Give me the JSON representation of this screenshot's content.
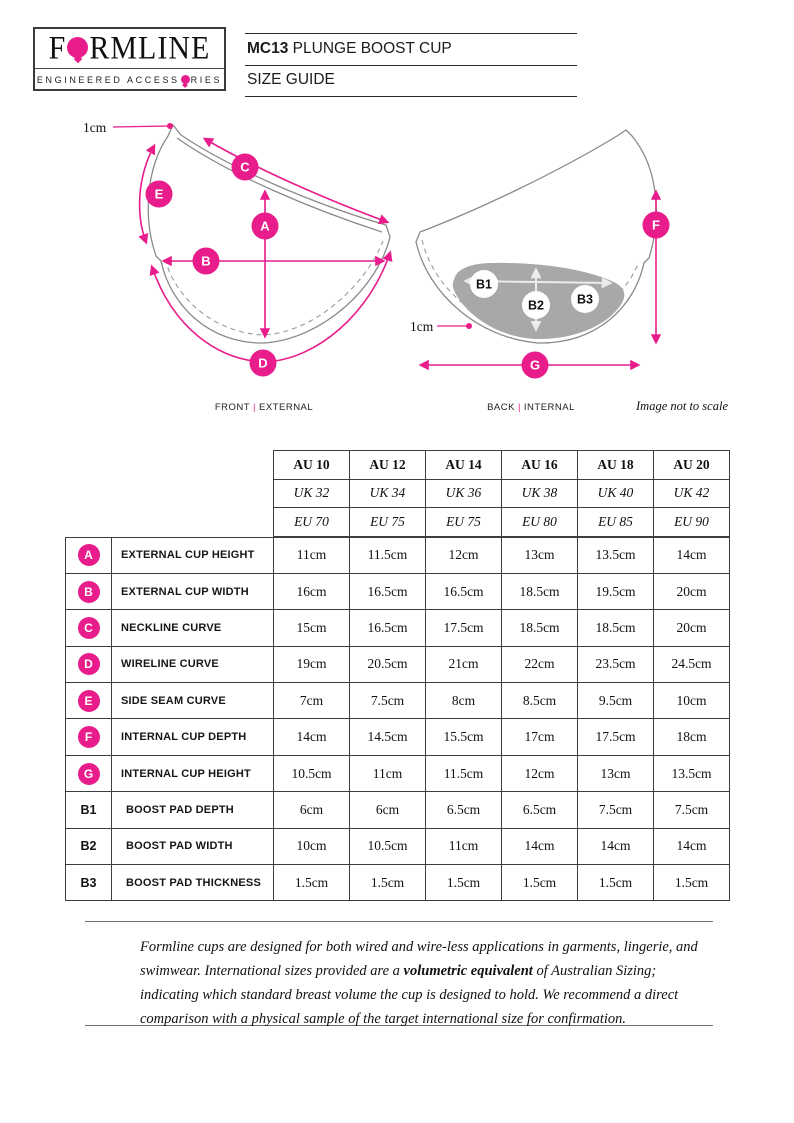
{
  "colors": {
    "accent_pink": "#e81c8b",
    "cup_outline": "#8a8a8a",
    "pad_gray": "#a8a8a8"
  },
  "header": {
    "logo": {
      "word_start": "F",
      "word_end": "RMLINE",
      "subtitle_start": "ENGINEERED ACCESS",
      "subtitle_end": "RIES"
    },
    "product_code": "MC13",
    "product_name": "PLUNGE BOOST CUP",
    "doc_title": "SIZE GUIDE"
  },
  "diagram": {
    "seam_allowance_front": "1cm",
    "seam_allowance_back": "1cm",
    "front_caption": {
      "left": "FRONT",
      "separator": "|",
      "right": "EXTERNAL"
    },
    "back_caption": {
      "left": "BACK",
      "separator": "|",
      "right": "INTERNAL"
    },
    "scale_note": "Image not to scale",
    "markers": {
      "A": "A",
      "B": "B",
      "C": "C",
      "D": "D",
      "E": "E",
      "F": "F",
      "G": "G",
      "B1": "B1",
      "B2": "B2",
      "B3": "B3"
    }
  },
  "table": {
    "header_rows": [
      {
        "style": "bold",
        "cells": [
          "AU 10",
          "AU 12",
          "AU 14",
          "AU 16",
          "AU 18",
          "AU 20"
        ]
      },
      {
        "style": "italic",
        "cells": [
          "UK 32",
          "UK 34",
          "UK 36",
          "UK 38",
          "UK 40",
          "UK 42"
        ]
      },
      {
        "style": "italic",
        "cells": [
          "EU 70",
          "EU 75",
          "EU 75",
          "EU 80",
          "EU 85",
          "EU 90"
        ]
      }
    ],
    "rows": [
      {
        "marker": "A",
        "marker_style": "circle",
        "label": "EXTERNAL CUP HEIGHT",
        "values": [
          "11cm",
          "11.5cm",
          "12cm",
          "13cm",
          "13.5cm",
          "14cm"
        ]
      },
      {
        "marker": "B",
        "marker_style": "circle",
        "label": "EXTERNAL CUP WIDTH",
        "values": [
          "16cm",
          "16.5cm",
          "16.5cm",
          "18.5cm",
          "19.5cm",
          "20cm"
        ]
      },
      {
        "marker": "C",
        "marker_style": "circle",
        "label": "NECKLINE CURVE",
        "values": [
          "15cm",
          "16.5cm",
          "17.5cm",
          "18.5cm",
          "18.5cm",
          "20cm"
        ]
      },
      {
        "marker": "D",
        "marker_style": "circle",
        "label": "WIRELINE CURVE",
        "values": [
          "19cm",
          "20.5cm",
          "21cm",
          "22cm",
          "23.5cm",
          "24.5cm"
        ]
      },
      {
        "marker": "E",
        "marker_style": "circle",
        "label": "SIDE SEAM CURVE",
        "values": [
          "7cm",
          "7.5cm",
          "8cm",
          "8.5cm",
          "9.5cm",
          "10cm"
        ]
      },
      {
        "marker": "F",
        "marker_style": "circle",
        "label": "INTERNAL CUP DEPTH",
        "values": [
          "14cm",
          "14.5cm",
          "15.5cm",
          "17cm",
          "17.5cm",
          "18cm"
        ]
      },
      {
        "marker": "G",
        "marker_style": "circle",
        "label": "INTERNAL CUP HEIGHT",
        "values": [
          "10.5cm",
          "11cm",
          "11.5cm",
          "12cm",
          "13cm",
          "13.5cm"
        ]
      },
      {
        "marker": "B1",
        "marker_style": "text",
        "label": "BOOST PAD DEPTH",
        "values": [
          "6cm",
          "6cm",
          "6.5cm",
          "6.5cm",
          "7.5cm",
          "7.5cm"
        ]
      },
      {
        "marker": "B2",
        "marker_style": "text",
        "label": "BOOST PAD WIDTH",
        "values": [
          "10cm",
          "10.5cm",
          "11cm",
          "14cm",
          "14cm",
          "14cm"
        ]
      },
      {
        "marker": "B3",
        "marker_style": "text",
        "label": "BOOST PAD THICKNESS",
        "values": [
          "1.5cm",
          "1.5cm",
          "1.5cm",
          "1.5cm",
          "1.5cm",
          "1.5cm"
        ]
      }
    ]
  },
  "footnote": {
    "part1": "Formline cups are designed for both wired and wire-less applications in garments, lingerie, and swimwear. International sizes provided are a ",
    "bold": "volumetric equivalent",
    "part2": " of Australian Sizing; indicating which standard breast volume the cup is designed to hold. We recommend a direct comparison with a physical sample of the target international size for confirmation."
  }
}
